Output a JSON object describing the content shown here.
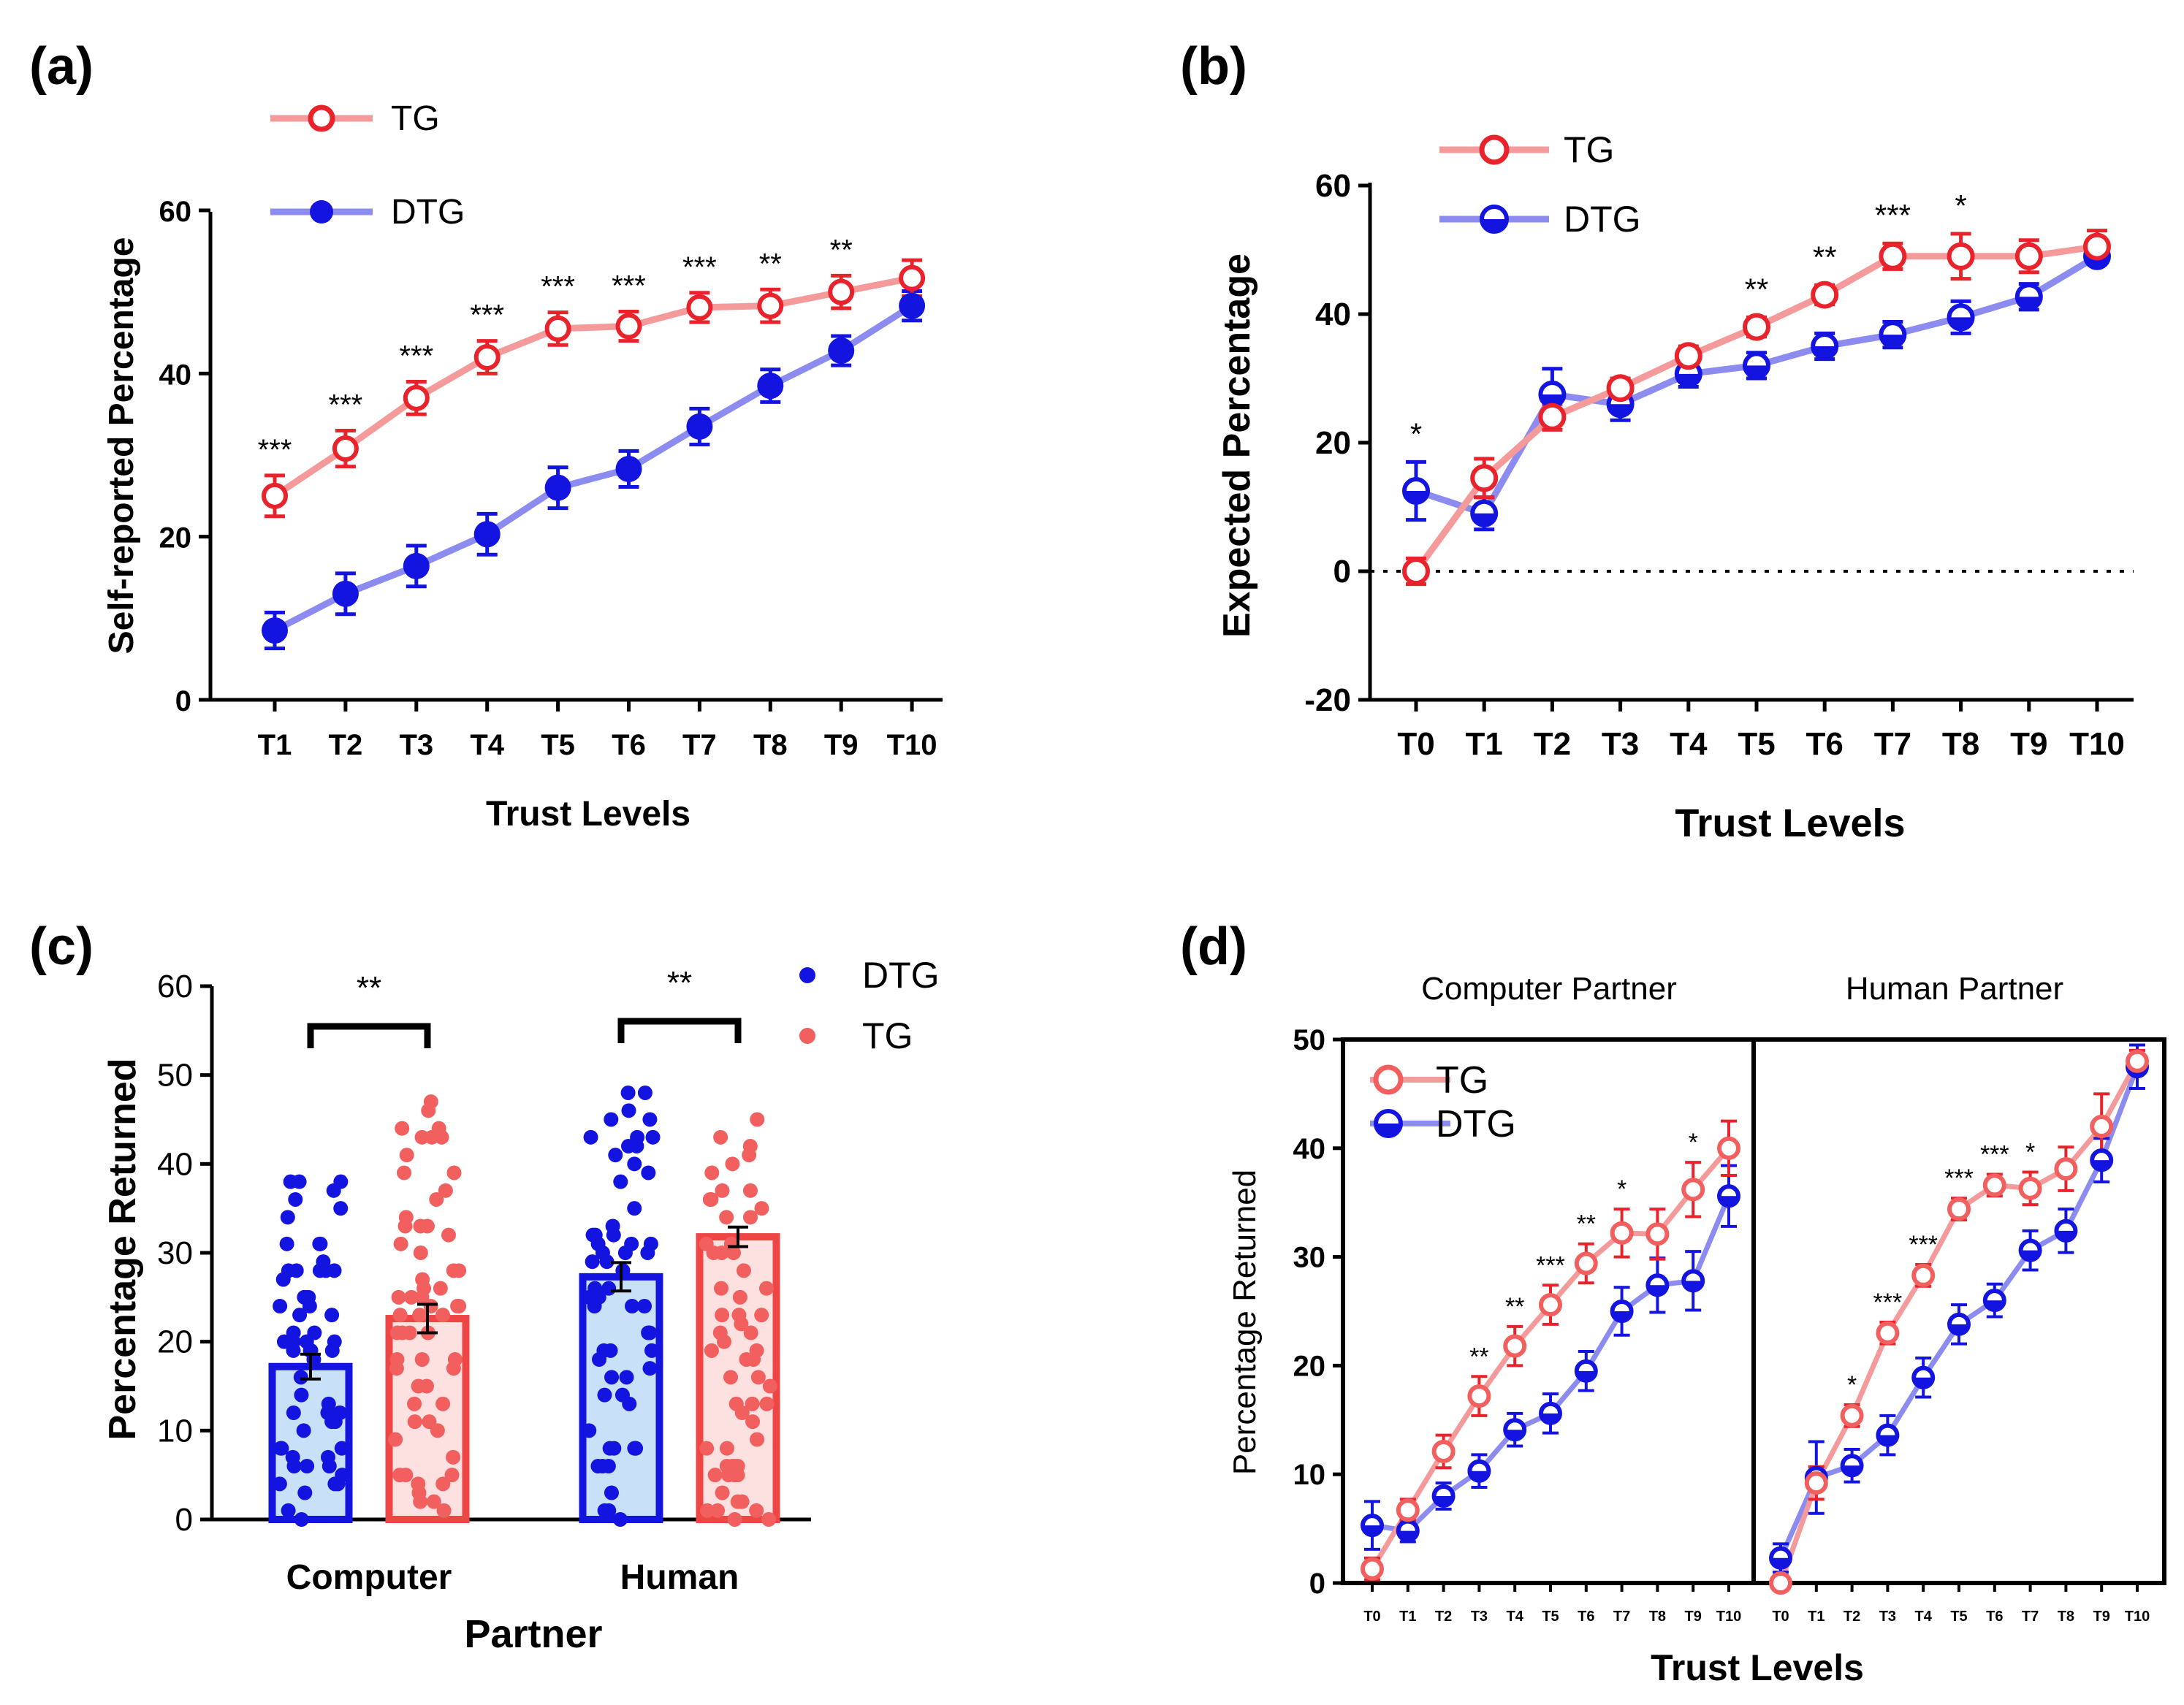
{
  "colors": {
    "tg": "#e8232b",
    "dtg": "#1414e0",
    "tg_line": "#f49a9a",
    "dtg_line": "#8c8cf0",
    "tg_fill": "#fde0e0",
    "dtg_fill": "#c8e0f8"
  },
  "chart_data": [
    {
      "type": "line",
      "panel_label": "(a)",
      "title": "",
      "xlabel": "Trust Levels",
      "ylabel": "Self-reported Percentage",
      "categories": [
        "T1",
        "T2",
        "T3",
        "T4",
        "T5",
        "T6",
        "T7",
        "T8",
        "T9",
        "T10"
      ],
      "ylim": [
        0,
        60
      ],
      "yticks": [
        "0",
        "20",
        "40",
        "60"
      ],
      "series": [
        {
          "name": "TG",
          "values": [
            25,
            30.8,
            37,
            42,
            45.5,
            45.8,
            48.1,
            48.3,
            50,
            51.7
          ],
          "errors": [
            2.5,
            2.2,
            2,
            2,
            2,
            1.8,
            1.8,
            2,
            2,
            2.2
          ]
        },
        {
          "name": "DTG",
          "values": [
            8.5,
            13,
            16.4,
            20.3,
            26,
            28.3,
            33.5,
            38.5,
            42.8,
            48.3
          ],
          "errors": [
            2.2,
            2.5,
            2.5,
            2.5,
            2.5,
            2.2,
            2.2,
            2,
            1.8,
            1.8
          ]
        }
      ],
      "significance": [
        "***",
        "***",
        "***",
        "***",
        "***",
        "***",
        "***",
        "**",
        "**",
        ""
      ]
    },
    {
      "type": "line",
      "panel_label": "(b)",
      "title": "",
      "xlabel": "Trust Levels",
      "ylabel": "Expected Percentage",
      "categories": [
        "T0",
        "T1",
        "T2",
        "T3",
        "T4",
        "T5",
        "T6",
        "T7",
        "T8",
        "T9",
        "T10"
      ],
      "ylim": [
        -20,
        60
      ],
      "yticks": [
        "-20",
        "0",
        "20",
        "40",
        "60"
      ],
      "series": [
        {
          "name": "TG",
          "values": [
            0,
            14.5,
            24,
            28.5,
            33.5,
            38,
            43,
            49,
            49,
            49,
            50.5
          ],
          "errors": [
            2,
            3,
            2,
            1.5,
            1.5,
            1.5,
            1.5,
            2,
            3.5,
            2.5,
            2.5
          ]
        },
        {
          "name": "DTG",
          "values": [
            12.5,
            9,
            27.5,
            26,
            30.7,
            32,
            35,
            36.8,
            39.5,
            42.7,
            49
          ],
          "errors": [
            4.5,
            2.5,
            4,
            2.5,
            2,
            2,
            2,
            2,
            2.5,
            2,
            1
          ]
        }
      ],
      "significance": [
        "*",
        "",
        "",
        "",
        "",
        "**",
        "**",
        "***",
        "*",
        "",
        ""
      ]
    },
    {
      "type": "bar",
      "panel_label": "(c)",
      "title": "",
      "xlabel": "Partner",
      "ylabel": "Percentage Returned",
      "categories": [
        "Computer",
        "Human"
      ],
      "ylim": [
        0,
        60
      ],
      "yticks": [
        "0",
        "10",
        "20",
        "30",
        "40",
        "50",
        "60"
      ],
      "series": [
        {
          "name": "DTG",
          "values": [
            17.2,
            27.3
          ],
          "errors": [
            1.4,
            1.6
          ]
        },
        {
          "name": "TG",
          "values": [
            22.6,
            31.8
          ],
          "errors": [
            1.6,
            1.1
          ]
        }
      ],
      "significance": [
        "**",
        "**"
      ]
    },
    {
      "type": "line",
      "panel_label": "(d)",
      "title": "",
      "xlabel": "Trust Levels",
      "ylabel": "Percentage Returned",
      "facets": [
        "Computer Partner",
        "Human Partner"
      ],
      "categories": [
        "T0",
        "T1",
        "T2",
        "T3",
        "T4",
        "T5",
        "T6",
        "T7",
        "T8",
        "T9",
        "T10"
      ],
      "ylim": [
        0,
        50
      ],
      "yticks": [
        "0",
        "10",
        "20",
        "30",
        "40",
        "50"
      ],
      "panels": [
        {
          "series": [
            {
              "name": "TG",
              "values": [
                1.3,
                6.7,
                12.1,
                17.2,
                21.8,
                25.6,
                29.4,
                32.2,
                32.1,
                36.2,
                40
              ],
              "errors": [
                1,
                1,
                1.5,
                1.8,
                1.8,
                1.8,
                1.8,
                2.2,
                2.3,
                2.5,
                2.5
              ]
            },
            {
              "name": "DTG",
              "values": [
                5.3,
                4.8,
                8,
                10.3,
                14.1,
                15.6,
                19.5,
                25,
                27.4,
                27.8,
                35.6
              ],
              "errors": [
                2.2,
                1,
                1.2,
                1.5,
                1.5,
                1.8,
                1.8,
                2.2,
                2.5,
                2.7,
                2.8
              ]
            }
          ],
          "significance": [
            "",
            "",
            "",
            "**",
            "**",
            "***",
            "**",
            "*",
            "",
            "*",
            ""
          ]
        },
        {
          "series": [
            {
              "name": "TG",
              "values": [
                0,
                9.2,
                15.4,
                23,
                28.3,
                34.4,
                36.6,
                36.3,
                38.1,
                42,
                48
              ],
              "errors": [
                0.5,
                1.5,
                1,
                1,
                1,
                1,
                1,
                1.5,
                2,
                3,
                1
              ]
            },
            {
              "name": "DTG",
              "values": [
                2.3,
                9.7,
                10.8,
                13.6,
                18.9,
                23.8,
                26,
                30.6,
                32.4,
                38.9,
                47.5
              ],
              "errors": [
                1.3,
                3.3,
                1.5,
                1.8,
                1.8,
                1.8,
                1.5,
                1.8,
                2,
                2,
                2
              ]
            }
          ],
          "significance": [
            "",
            "",
            "*",
            "***",
            "***",
            "***",
            "***",
            "*",
            "",
            "",
            ""
          ]
        }
      ]
    }
  ]
}
